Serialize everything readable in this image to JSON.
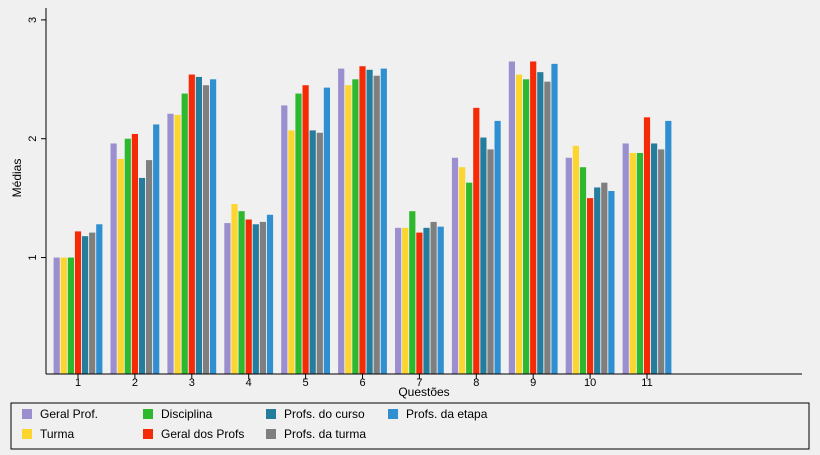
{
  "chart_data": {
    "type": "bar",
    "xlabel": "Questões",
    "ylabel": "Médias",
    "ylim": [
      0.02,
      3.1
    ],
    "yticks": [
      1,
      2,
      3
    ],
    "categories": [
      "1",
      "2",
      "3",
      "4",
      "5",
      "6",
      "7",
      "8",
      "9",
      "10",
      "11"
    ],
    "grid": false,
    "legend_position": "bottom",
    "series": [
      {
        "name": "Geral Prof.",
        "color": "#9b8fcf",
        "values": [
          1.0,
          1.96,
          2.21,
          1.29,
          2.28,
          2.59,
          1.25,
          1.84,
          2.65,
          1.84,
          1.96
        ]
      },
      {
        "name": "Turma",
        "color": "#fcd52f",
        "values": [
          1.0,
          1.83,
          2.2,
          1.45,
          2.07,
          2.45,
          1.25,
          1.76,
          2.54,
          1.94,
          1.88
        ]
      },
      {
        "name": "Disciplina",
        "color": "#2eb82e",
        "values": [
          1.0,
          2.0,
          2.38,
          1.39,
          2.38,
          2.5,
          1.39,
          1.63,
          2.5,
          1.76,
          1.88
        ]
      },
      {
        "name": "Geral dos Profs",
        "color": "#f52a06",
        "values": [
          1.22,
          2.04,
          2.54,
          1.32,
          2.45,
          2.61,
          1.21,
          2.26,
          2.65,
          1.5,
          2.18
        ]
      },
      {
        "name": "Profs. do curso",
        "color": "#257d9e",
        "values": [
          1.18,
          1.67,
          2.52,
          1.28,
          2.07,
          2.58,
          1.25,
          2.01,
          2.56,
          1.59,
          1.96
        ]
      },
      {
        "name": "Profs. da turma",
        "color": "#7f7f7f",
        "values": [
          1.21,
          1.82,
          2.45,
          1.3,
          2.05,
          2.53,
          1.3,
          1.91,
          2.48,
          1.63,
          1.91
        ]
      },
      {
        "name": "Profs. da etapa",
        "color": "#2f8fd0",
        "values": [
          1.28,
          2.12,
          2.5,
          1.36,
          2.43,
          2.59,
          1.26,
          2.15,
          2.63,
          1.56,
          2.15
        ]
      }
    ]
  }
}
